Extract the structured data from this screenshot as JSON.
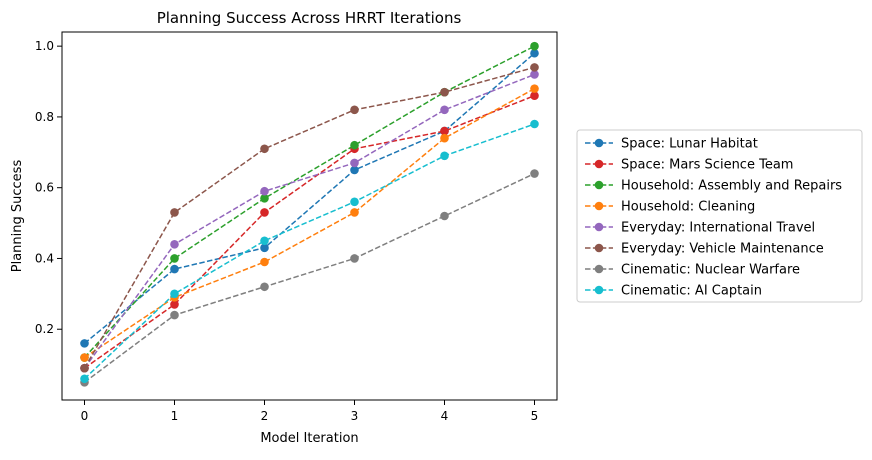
{
  "chart_data": {
    "type": "line",
    "title": "Planning Success Across HRRT Iterations",
    "xlabel": "Model Iteration",
    "ylabel": "Planning Success",
    "x": [
      0,
      1,
      2,
      3,
      4,
      5
    ],
    "xlim": [
      -0.25,
      5.25
    ],
    "ylim": [
      0.0,
      1.04
    ],
    "xticks": [
      "0",
      "1",
      "2",
      "3",
      "4",
      "5"
    ],
    "yticks": [
      "0.2",
      "0.4",
      "0.6",
      "0.8",
      "1.0"
    ],
    "ytick_values": [
      0.2,
      0.4,
      0.6,
      0.8,
      1.0
    ],
    "grid": false,
    "legend_position": "outside-right",
    "line_style": "dashed",
    "marker": "circle",
    "series": [
      {
        "name": "Space: Lunar Habitat",
        "color": "#1f77b4",
        "values": [
          0.16,
          0.37,
          0.43,
          0.65,
          0.76,
          0.98
        ]
      },
      {
        "name": "Space: Mars Science Team",
        "color": "#d62728",
        "values": [
          0.09,
          0.27,
          0.53,
          0.71,
          0.76,
          0.86
        ]
      },
      {
        "name": "Household: Assembly and Repairs",
        "color": "#2ca02c",
        "values": [
          0.12,
          0.4,
          0.57,
          0.72,
          0.87,
          1.0
        ]
      },
      {
        "name": "Household: Cleaning",
        "color": "#ff7f0e",
        "values": [
          0.12,
          0.29,
          0.39,
          0.53,
          0.74,
          0.88
        ]
      },
      {
        "name": "Everyday: International Travel",
        "color": "#9467bd",
        "values": [
          0.09,
          0.44,
          0.59,
          0.67,
          0.82,
          0.92
        ]
      },
      {
        "name": "Everyday: Vehicle Maintenance",
        "color": "#8c564b",
        "values": [
          0.09,
          0.53,
          0.71,
          0.82,
          0.87,
          0.94
        ]
      },
      {
        "name": "Cinematic: Nuclear Warfare",
        "color": "#7f7f7f",
        "values": [
          0.05,
          0.24,
          0.32,
          0.4,
          0.52,
          0.64
        ]
      },
      {
        "name": "Cinematic: AI Captain",
        "color": "#17becf",
        "values": [
          0.06,
          0.3,
          0.45,
          0.56,
          0.69,
          0.78
        ]
      }
    ]
  }
}
